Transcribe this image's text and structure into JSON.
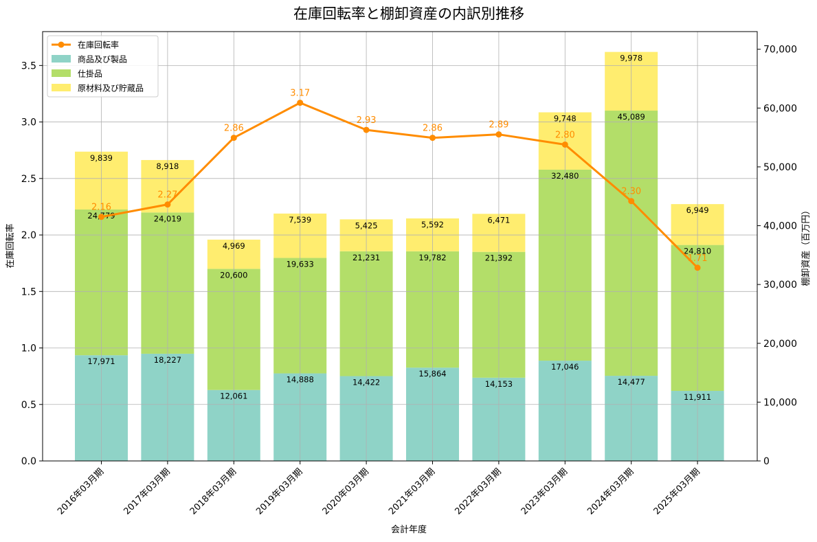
{
  "chart_data": {
    "type": "bar",
    "title": "在庫回転率と棚卸資産の内訳別推移",
    "xlabel": "会計年度",
    "ylabel": "在庫回転率",
    "y2label": "棚卸資産（百万円）",
    "ylim": [
      0,
      3.8
    ],
    "y2lim": [
      0,
      73000
    ],
    "yticks": [
      "0.0",
      "0.5",
      "1.0",
      "1.5",
      "2.0",
      "2.5",
      "3.0",
      "3.5"
    ],
    "ytick_values": [
      0,
      0.5,
      1.0,
      1.5,
      2.0,
      2.5,
      3.0,
      3.5
    ],
    "y2ticks": [
      "0",
      "10,000",
      "20,000",
      "30,000",
      "40,000",
      "50,000",
      "60,000",
      "70,000"
    ],
    "y2tick_values": [
      0,
      10000,
      20000,
      30000,
      40000,
      50000,
      60000,
      70000
    ],
    "grid": true,
    "legend_position": "top-left",
    "categories": [
      "2016年03月期",
      "2017年03月期",
      "2018年03月期",
      "2019年03月期",
      "2020年03月期",
      "2021年03月期",
      "2022年03月期",
      "2023年03月期",
      "2024年03月期",
      "2025年03月期"
    ],
    "series": [
      {
        "name": "商品及び製品",
        "kind": "stacked-bar",
        "axis": "right",
        "color": "#8fd3c7",
        "values": [
          17971,
          18227,
          12061,
          14888,
          14422,
          15864,
          14153,
          17046,
          14477,
          11911
        ],
        "labels": [
          "17,971",
          "18,227",
          "12,061",
          "14,888",
          "14,422",
          "15,864",
          "14,153",
          "17,046",
          "14,477",
          "11,911"
        ]
      },
      {
        "name": "仕掛品",
        "kind": "stacked-bar",
        "axis": "right",
        "color": "#b3de69",
        "values": [
          24779,
          24019,
          20600,
          19633,
          21231,
          19782,
          21392,
          32480,
          45089,
          24810
        ],
        "labels": [
          "24,779",
          "24,019",
          "20,600",
          "19,633",
          "21,231",
          "19,782",
          "21,392",
          "32,480",
          "45,089",
          "24,810"
        ]
      },
      {
        "name": "原材料及び貯蔵品",
        "kind": "stacked-bar",
        "axis": "right",
        "color": "#ffed6f",
        "values": [
          9839,
          8918,
          4969,
          7539,
          5425,
          5592,
          6471,
          9748,
          9978,
          6949
        ],
        "labels": [
          "9,839",
          "8,918",
          "4,969",
          "7,539",
          "5,425",
          "5,592",
          "6,471",
          "9,748",
          "9,978",
          "6,949"
        ]
      },
      {
        "name": "在庫回転率",
        "kind": "line",
        "axis": "left",
        "color": "#ff8c00",
        "values": [
          2.16,
          2.27,
          2.86,
          3.17,
          2.93,
          2.86,
          2.89,
          2.8,
          2.3,
          1.71
        ],
        "labels": [
          "2.16",
          "2.27",
          "2.86",
          "3.17",
          "2.93",
          "2.86",
          "2.89",
          "2.80",
          "2.30",
          "1.71"
        ]
      }
    ]
  }
}
